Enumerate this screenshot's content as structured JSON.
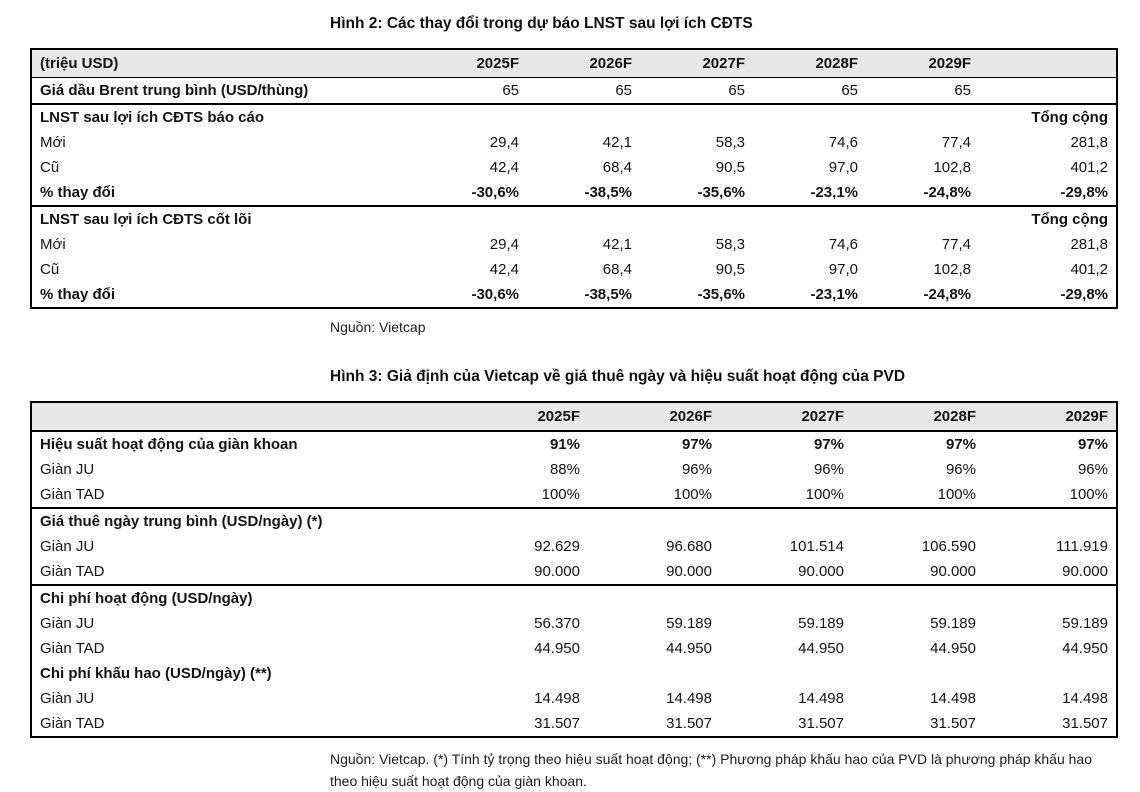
{
  "colors": {
    "table_header_bg": "#e8e8e8",
    "table_border": "#000000",
    "text": "#141414",
    "page_bg": "#ffffff"
  },
  "figure2": {
    "title": "Hình 2: Các thay đổi trong dự báo LNST sau lợi ích CĐTS",
    "source": "Nguồn: Vietcap",
    "table": {
      "header": [
        "(triệu USD)",
        "2025F",
        "2026F",
        "2027F",
        "2028F",
        "2029F",
        ""
      ],
      "rows": [
        {
          "label": "Giá dầu Brent trung bình (USD/thùng)",
          "bold": true,
          "bold_values": false,
          "separator": true,
          "values": [
            "65",
            "65",
            "65",
            "65",
            "65",
            ""
          ]
        },
        {
          "label": "LNST sau lợi ích CĐTS báo cáo",
          "bold": true,
          "bold_values": true,
          "separator": false,
          "values": [
            "",
            "",
            "",
            "",
            "",
            "Tổng cộng"
          ]
        },
        {
          "label": "Mới",
          "bold": false,
          "bold_values": false,
          "separator": false,
          "values": [
            "29,4",
            "42,1",
            "58,3",
            "74,6",
            "77,4",
            "281,8"
          ]
        },
        {
          "label": "Cũ",
          "bold": false,
          "bold_values": false,
          "separator": false,
          "values": [
            "42,4",
            "68,4",
            "90,5",
            "97,0",
            "102,8",
            "401,2"
          ]
        },
        {
          "label": "% thay đổi",
          "bold": true,
          "bold_values": true,
          "separator": true,
          "values": [
            "-30,6%",
            "-38,5%",
            "-35,6%",
            "-23,1%",
            "-24,8%",
            "-29,8%"
          ]
        },
        {
          "label": "LNST sau lợi ích CĐTS cốt lõi",
          "bold": true,
          "bold_values": true,
          "separator": false,
          "values": [
            "",
            "",
            "",
            "",
            "",
            "Tổng cộng"
          ]
        },
        {
          "label": "Mới",
          "bold": false,
          "bold_values": false,
          "separator": false,
          "values": [
            "29,4",
            "42,1",
            "58,3",
            "74,6",
            "77,4",
            "281,8"
          ]
        },
        {
          "label": "Cũ",
          "bold": false,
          "bold_values": false,
          "separator": false,
          "values": [
            "42,4",
            "68,4",
            "90,5",
            "97,0",
            "102,8",
            "401,2"
          ]
        },
        {
          "label": "% thay đổi",
          "bold": true,
          "bold_values": true,
          "separator": false,
          "values": [
            "-30,6%",
            "-38,5%",
            "-35,6%",
            "-23,1%",
            "-24,8%",
            "-29,8%"
          ]
        }
      ]
    }
  },
  "figure3": {
    "title": "Hình 3: Giả định của Vietcap về giá thuê ngày và hiệu suất hoạt động của PVD",
    "source": "Nguồn: Vietcap. (*) Tính tỷ trọng theo hiệu suất hoạt động; (**) Phương pháp khấu hao của PVD là phương pháp khấu hao theo hiệu suất hoạt động của giàn khoan.",
    "table": {
      "header": [
        "",
        "2025F",
        "2026F",
        "2027F",
        "2028F",
        "2029F"
      ],
      "rows": [
        {
          "label": "Hiệu suất hoạt động của giàn khoan",
          "bold": true,
          "bold_values": true,
          "separator": false,
          "values": [
            "91%",
            "97%",
            "97%",
            "97%",
            "97%"
          ]
        },
        {
          "label": "Giàn JU",
          "bold": false,
          "bold_values": false,
          "separator": false,
          "values": [
            "88%",
            "96%",
            "96%",
            "96%",
            "96%"
          ]
        },
        {
          "label": "Giàn TAD",
          "bold": false,
          "bold_values": false,
          "separator": true,
          "values": [
            "100%",
            "100%",
            "100%",
            "100%",
            "100%"
          ]
        },
        {
          "label": "Giá thuê ngày trung bình (USD/ngày) (*)",
          "bold": true,
          "bold_values": false,
          "separator": false,
          "values": [
            "",
            "",
            "",
            "",
            ""
          ]
        },
        {
          "label": "Giàn JU",
          "bold": false,
          "bold_values": false,
          "separator": false,
          "values": [
            "92.629",
            "96.680",
            "101.514",
            "106.590",
            "111.919"
          ]
        },
        {
          "label": "Giàn TAD",
          "bold": false,
          "bold_values": false,
          "separator": true,
          "values": [
            "90.000",
            "90.000",
            "90.000",
            "90.000",
            "90.000"
          ]
        },
        {
          "label": "Chi phí hoạt động (USD/ngày)",
          "bold": true,
          "bold_values": false,
          "separator": false,
          "values": [
            "",
            "",
            "",
            "",
            ""
          ]
        },
        {
          "label": "Giàn JU",
          "bold": false,
          "bold_values": false,
          "separator": false,
          "values": [
            "56.370",
            "59.189",
            "59.189",
            "59.189",
            "59.189"
          ]
        },
        {
          "label": "Giàn TAD",
          "bold": false,
          "bold_values": false,
          "separator": false,
          "values": [
            "44.950",
            "44.950",
            "44.950",
            "44.950",
            "44.950"
          ]
        },
        {
          "label": "Chi phí khấu hao (USD/ngày) (**)",
          "bold": true,
          "bold_values": false,
          "separator": false,
          "values": [
            "",
            "",
            "",
            "",
            ""
          ]
        },
        {
          "label": "Giàn JU",
          "bold": false,
          "bold_values": false,
          "separator": false,
          "values": [
            "14.498",
            "14.498",
            "14.498",
            "14.498",
            "14.498"
          ]
        },
        {
          "label": "Giàn TAD",
          "bold": false,
          "bold_values": false,
          "separator": false,
          "values": [
            "31.507",
            "31.507",
            "31.507",
            "31.507",
            "31.507"
          ]
        }
      ]
    }
  }
}
